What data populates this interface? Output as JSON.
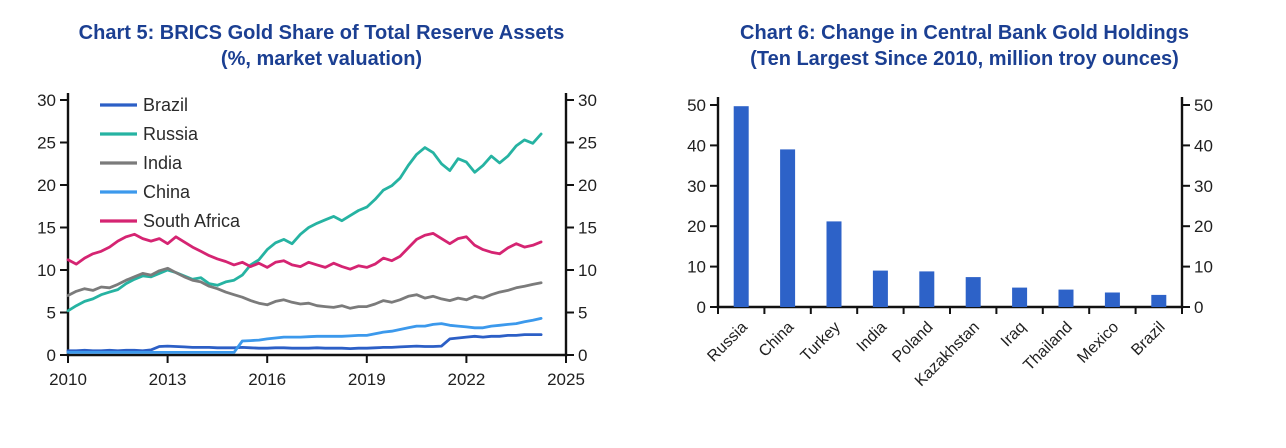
{
  "colors": {
    "title": "#1b3f92",
    "axis": "#111111",
    "tick_labels": "#1f1f1f",
    "legend_text": "#2b2b2b"
  },
  "chart_data": [
    {
      "type": "line",
      "title": "Chart 5: BRICS Gold Share of Total Reserve Assets",
      "subtitle": "(%, market valuation)",
      "xlabel": "",
      "ylabel": "",
      "xlim": [
        2010,
        2025
      ],
      "ylim": [
        0,
        30
      ],
      "xticks": [
        2010,
        2013,
        2016,
        2019,
        2022,
        2025
      ],
      "yticks": [
        0,
        5,
        10,
        15,
        20,
        25,
        30
      ],
      "dual_y_axis": true,
      "grid": false,
      "legend_position": "top-left",
      "x_start": 2010,
      "x_step": 0.25,
      "series": [
        {
          "name": "Brazil",
          "color": "#2c5fc6",
          "values": [
            0.5,
            0.5,
            0.55,
            0.5,
            0.5,
            0.55,
            0.5,
            0.55,
            0.55,
            0.5,
            0.6,
            1.0,
            1.05,
            1.0,
            0.95,
            0.9,
            0.9,
            0.9,
            0.85,
            0.85,
            0.85,
            0.9,
            0.85,
            0.8,
            0.8,
            0.85,
            0.85,
            0.8,
            0.8,
            0.8,
            0.85,
            0.8,
            0.8,
            0.8,
            0.75,
            0.8,
            0.8,
            0.85,
            0.9,
            0.9,
            0.95,
            1.0,
            1.05,
            1.0,
            1.0,
            1.05,
            1.9,
            2.0,
            2.1,
            2.2,
            2.1,
            2.2,
            2.2,
            2.3,
            2.3,
            2.4,
            2.4,
            2.4
          ]
        },
        {
          "name": "Russia",
          "color": "#26b3a2",
          "values": [
            5.2,
            5.8,
            6.3,
            6.6,
            7.1,
            7.4,
            7.7,
            8.4,
            8.9,
            9.3,
            9.2,
            9.6,
            10.0,
            9.7,
            9.3,
            8.9,
            9.1,
            8.4,
            8.2,
            8.6,
            8.8,
            9.4,
            10.6,
            11.2,
            12.4,
            13.2,
            13.6,
            13.1,
            14.2,
            15.0,
            15.5,
            15.9,
            16.3,
            15.8,
            16.4,
            17.0,
            17.4,
            18.3,
            19.4,
            19.9,
            20.8,
            22.3,
            23.6,
            24.4,
            23.8,
            22.5,
            21.7,
            23.1,
            22.7,
            21.5,
            22.3,
            23.4,
            22.6,
            23.4,
            24.6,
            25.3,
            24.9,
            26.0
          ]
        },
        {
          "name": "India",
          "color": "#7b7b7b",
          "values": [
            7.0,
            7.5,
            7.8,
            7.6,
            8.0,
            7.9,
            8.3,
            8.8,
            9.2,
            9.6,
            9.4,
            9.9,
            10.2,
            9.7,
            9.2,
            8.8,
            8.6,
            8.1,
            7.8,
            7.4,
            7.1,
            6.8,
            6.4,
            6.1,
            5.9,
            6.3,
            6.5,
            6.2,
            6.0,
            6.1,
            5.8,
            5.7,
            5.6,
            5.8,
            5.5,
            5.7,
            5.7,
            6.0,
            6.4,
            6.2,
            6.5,
            6.9,
            7.1,
            6.7,
            6.9,
            6.6,
            6.4,
            6.7,
            6.5,
            6.9,
            6.7,
            7.1,
            7.4,
            7.6,
            7.9,
            8.1,
            8.3,
            8.5
          ]
        },
        {
          "name": "China",
          "color": "#3c99ec",
          "values": [
            0.3,
            0.3,
            0.3,
            0.3,
            0.3,
            0.3,
            0.3,
            0.3,
            0.3,
            0.3,
            0.3,
            0.3,
            0.3,
            0.3,
            0.3,
            0.3,
            0.3,
            0.3,
            0.3,
            0.3,
            0.3,
            1.65,
            1.7,
            1.75,
            1.9,
            2.0,
            2.1,
            2.1,
            2.1,
            2.15,
            2.2,
            2.2,
            2.2,
            2.2,
            2.25,
            2.3,
            2.3,
            2.5,
            2.7,
            2.8,
            3.0,
            3.2,
            3.4,
            3.4,
            3.6,
            3.7,
            3.5,
            3.4,
            3.3,
            3.2,
            3.2,
            3.4,
            3.5,
            3.6,
            3.7,
            3.9,
            4.1,
            4.3
          ]
        },
        {
          "name": "South Africa",
          "color": "#d52472",
          "values": [
            11.2,
            10.7,
            11.4,
            11.9,
            12.2,
            12.7,
            13.4,
            13.9,
            14.2,
            13.7,
            13.4,
            13.7,
            13.1,
            13.9,
            13.3,
            12.7,
            12.2,
            11.7,
            11.3,
            11.0,
            10.6,
            10.9,
            10.4,
            10.8,
            10.3,
            10.9,
            11.1,
            10.6,
            10.4,
            10.9,
            10.6,
            10.3,
            10.8,
            10.4,
            10.1,
            10.5,
            10.3,
            10.7,
            11.4,
            11.1,
            11.6,
            12.6,
            13.6,
            14.1,
            14.3,
            13.7,
            13.1,
            13.7,
            13.9,
            12.9,
            12.4,
            12.1,
            11.9,
            12.6,
            13.1,
            12.7,
            12.9,
            13.3
          ]
        }
      ]
    },
    {
      "type": "bar",
      "title": "Chart 6: Change in Central Bank Gold Holdings",
      "subtitle": "(Ten Largest Since 2010, million troy ounces)",
      "xlabel": "",
      "ylabel": "",
      "categories": [
        "Russia",
        "China",
        "Turkey",
        "India",
        "Poland",
        "Kazakhstan",
        "Iraq",
        "Thailand",
        "Mexico",
        "Brazil"
      ],
      "values": [
        49.7,
        39.0,
        21.2,
        9.0,
        8.8,
        7.4,
        4.8,
        4.3,
        3.6,
        3.0
      ],
      "bar_color": "#2d62c8",
      "ylim": [
        0,
        50
      ],
      "yticks": [
        0,
        10,
        20,
        30,
        40,
        50
      ],
      "dual_y_axis": true,
      "grid": false
    }
  ]
}
